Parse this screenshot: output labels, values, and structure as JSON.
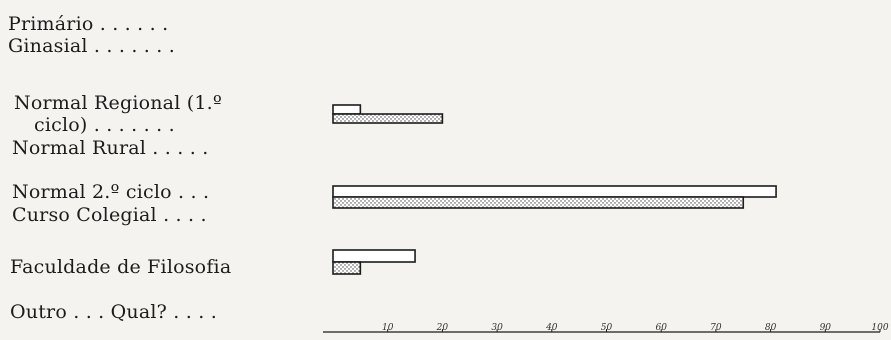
{
  "chart_data": {
    "type": "bar",
    "orientation": "horizontal",
    "row_labels": [
      {
        "id": "primario",
        "text": "Primário . . . . . ."
      },
      {
        "id": "ginasial",
        "text": "Ginasial . . . . . . ."
      },
      {
        "id": "normal-regional-a",
        "text": "Normal Regional (1.º"
      },
      {
        "id": "normal-regional-b",
        "text": "ciclo) . . . . . . ."
      },
      {
        "id": "normal-rural",
        "text": "Normal Rural . . . . ."
      },
      {
        "id": "normal-2-ciclo",
        "text": "Normal 2.º ciclo . . ."
      },
      {
        "id": "curso-colegial",
        "text": "Curso Colegial . . . ."
      },
      {
        "id": "faculdade",
        "text": "Faculdade de Filosofia"
      },
      {
        "id": "outro",
        "text": "Outro . . . Qual? . . . ."
      }
    ],
    "series": [
      {
        "pattern": "open",
        "values": [
          0,
          0,
          5,
          0,
          81,
          0,
          15,
          0
        ]
      },
      {
        "pattern": "dotted",
        "values": [
          0,
          0,
          20,
          0,
          75,
          0,
          5,
          0
        ]
      }
    ],
    "categories": [
      "Primário",
      "Ginasial",
      "Normal Regional (1.º ciclo)",
      "Normal Rural",
      "Normal 2.º ciclo",
      "Curso Colegial",
      "Faculdade de Filosofia",
      "Outro . . . Qual?"
    ],
    "x_ticks": [
      "10",
      "20",
      "30",
      "40",
      "50",
      "60",
      "70",
      "80",
      "90",
      "100"
    ],
    "xlim": [
      0,
      100
    ],
    "grid": false,
    "legend": "none"
  }
}
